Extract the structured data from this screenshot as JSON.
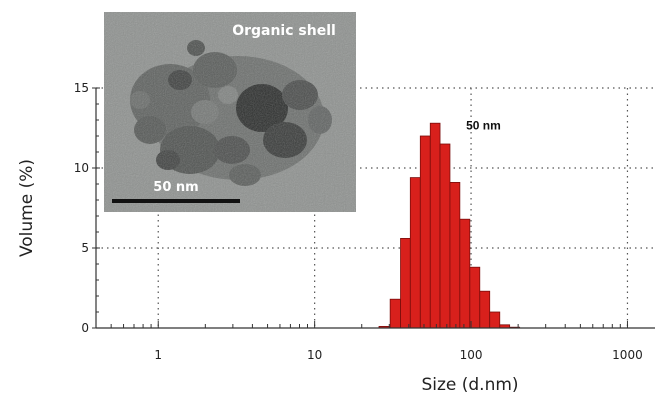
{
  "chart_data": {
    "type": "bar",
    "xlabel": "Size (d.nm)",
    "ylabel": "Volume (%)",
    "x_scale": "log",
    "xlim": [
      0.4,
      1500
    ],
    "ylim": [
      0,
      15
    ],
    "x_ticks": [
      {
        "value": 1,
        "label": "1"
      },
      {
        "value": 10,
        "label": "10"
      },
      {
        "value": 100,
        "label": "100"
      },
      {
        "value": 1000,
        "label": "1000"
      }
    ],
    "y_ticks": [
      {
        "value": 0,
        "label": "0"
      },
      {
        "value": 5,
        "label": "5"
      },
      {
        "value": 10,
        "label": "10"
      },
      {
        "value": 15,
        "label": "15"
      }
    ],
    "grid": true,
    "bar_color": "#d8201c",
    "bins": [
      {
        "size": 28,
        "value": 0.1
      },
      {
        "size": 33,
        "value": 1.8
      },
      {
        "size": 38,
        "value": 5.6
      },
      {
        "size": 44,
        "value": 9.4
      },
      {
        "size": 51,
        "value": 12.0
      },
      {
        "size": 59,
        "value": 12.8
      },
      {
        "size": 68,
        "value": 11.5
      },
      {
        "size": 79,
        "value": 9.1
      },
      {
        "size": 91,
        "value": 6.8
      },
      {
        "size": 106,
        "value": 3.8
      },
      {
        "size": 122,
        "value": 2.3
      },
      {
        "size": 142,
        "value": 1.0
      },
      {
        "size": 164,
        "value": 0.2
      },
      {
        "size": 190,
        "value": 0.05
      }
    ],
    "annotations": [
      {
        "text": "50 nm",
        "x": 120,
        "y": 12.4
      }
    ],
    "inset": {
      "title": "Organic shell",
      "scale_bar_label": "50 nm"
    }
  }
}
